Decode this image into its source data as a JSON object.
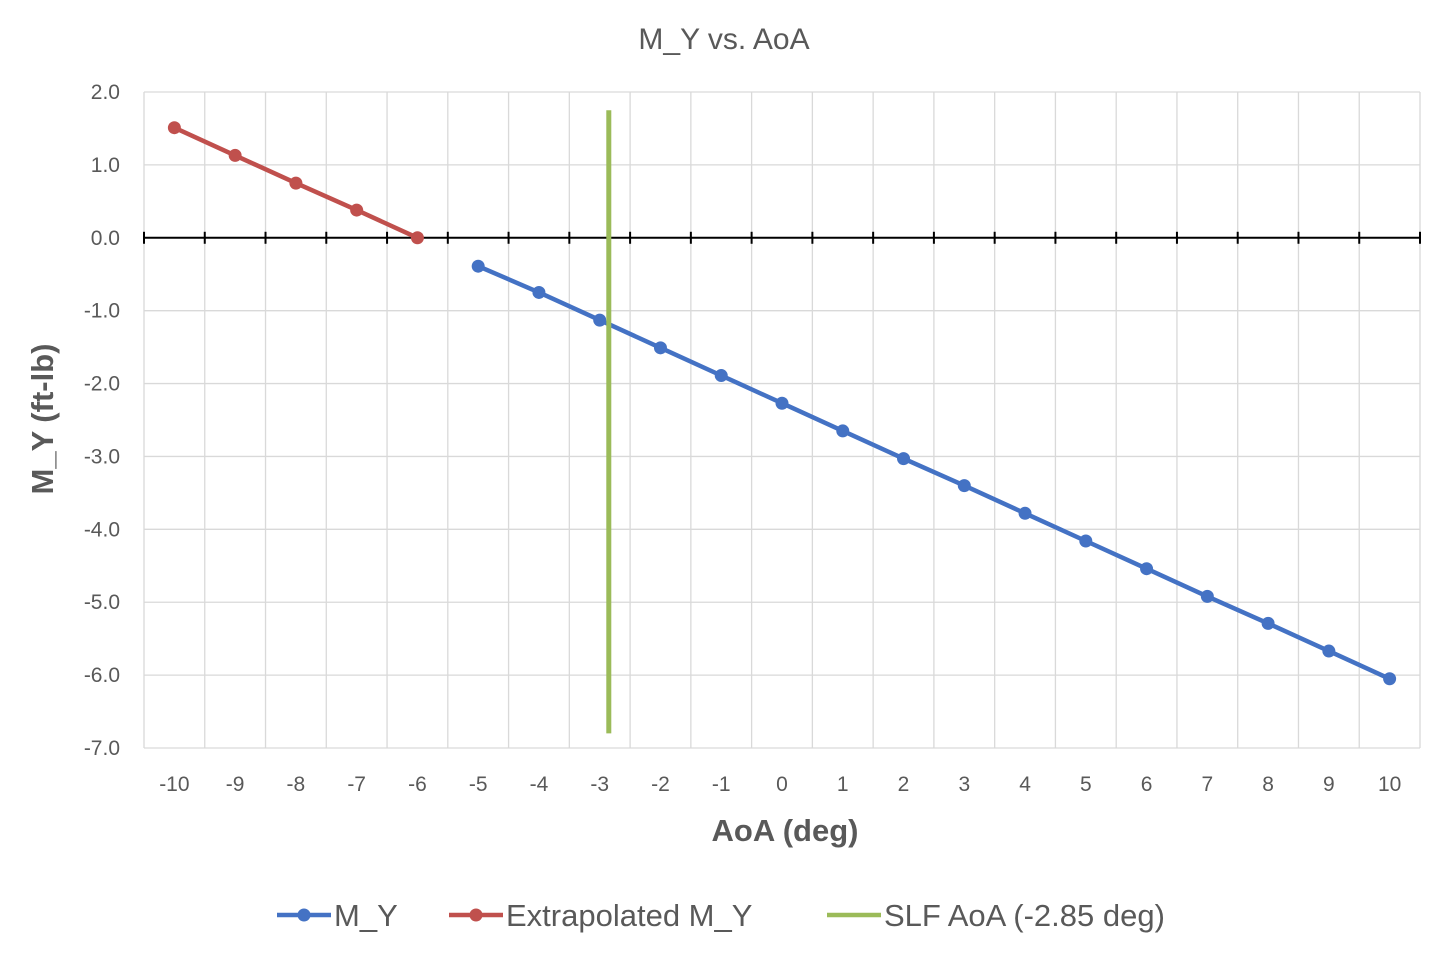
{
  "chart_data": {
    "type": "line",
    "title": "M_Y vs. AoA",
    "xlabel": "AoA (deg)",
    "ylabel": "M_Y (ft-lb)",
    "categories": [
      "-10",
      "-9",
      "-8",
      "-7",
      "-6",
      "-5",
      "-4",
      "-3",
      "-2",
      "-1",
      "0",
      "1",
      "2",
      "3",
      "4",
      "5",
      "6",
      "7",
      "8",
      "9",
      "10"
    ],
    "ylim": [
      -7.0,
      2.0
    ],
    "yticks": [
      "2.0",
      "1.0",
      "0.0",
      "-1.0",
      "-2.0",
      "-3.0",
      "-4.0",
      "-5.0",
      "-6.0",
      "-7.0"
    ],
    "grid": true,
    "legend_position": "bottom",
    "series": [
      {
        "name": "M_Y",
        "color": "#4472C4",
        "marker": "circle",
        "x": [
          -5,
          -4,
          -3,
          -2,
          -1,
          0,
          1,
          2,
          3,
          4,
          5,
          6,
          7,
          8,
          9,
          10
        ],
        "values": [
          -0.39,
          -0.75,
          -1.13,
          -1.51,
          -1.89,
          -2.27,
          -2.65,
          -3.03,
          -3.4,
          -3.78,
          -4.16,
          -4.54,
          -4.92,
          -5.29,
          -5.67,
          -6.05
        ]
      },
      {
        "name": "Extrapolated M_Y",
        "color": "#C0504D",
        "marker": "circle",
        "x": [
          -10,
          -9,
          -8,
          -7,
          -6
        ],
        "values": [
          1.51,
          1.13,
          0.75,
          0.38,
          0.0
        ]
      },
      {
        "name": "SLF AoA (-2.85 deg)",
        "color": "#9BBB59",
        "marker": "none",
        "x": [
          -2.85,
          -2.85
        ],
        "values": [
          1.75,
          -6.8
        ]
      }
    ]
  }
}
